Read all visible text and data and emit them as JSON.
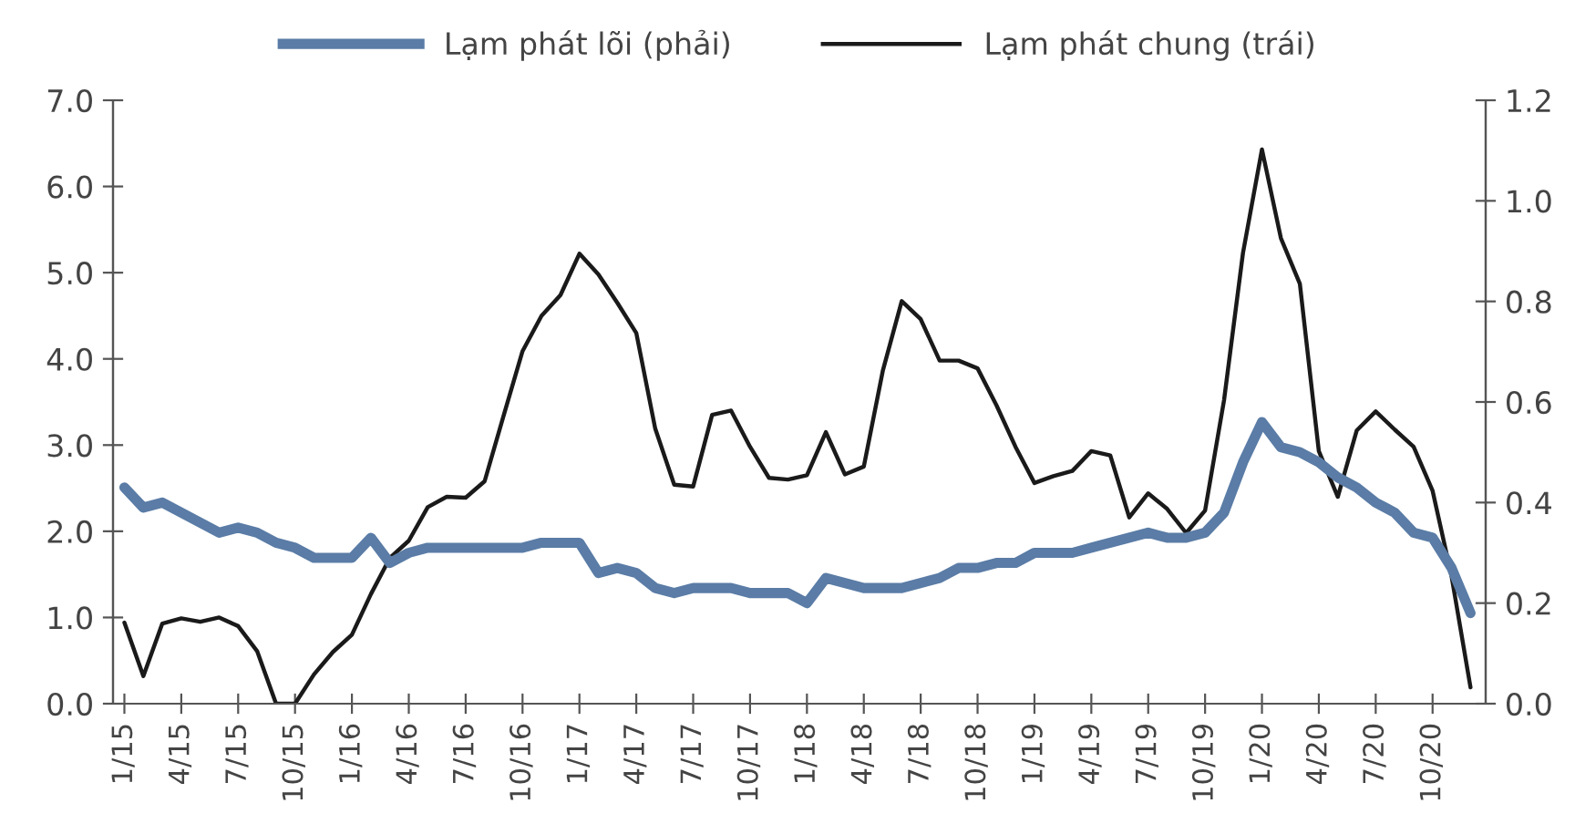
{
  "chart_data": {
    "type": "line",
    "categories": [
      "1/15",
      null,
      null,
      "4/15",
      null,
      null,
      "7/15",
      null,
      null,
      "10/15",
      null,
      null,
      "1/16",
      null,
      null,
      "4/16",
      null,
      null,
      "7/16",
      null,
      null,
      "10/16",
      null,
      null,
      "1/17",
      null,
      null,
      "4/17",
      null,
      null,
      "7/17",
      null,
      null,
      "10/17",
      null,
      null,
      "1/18",
      null,
      null,
      "4/18",
      null,
      null,
      "7/18",
      null,
      null,
      "10/18",
      null,
      null,
      "1/19",
      null,
      null,
      "4/19",
      null,
      null,
      "7/19",
      null,
      null,
      "10/19",
      null,
      null,
      "1/20",
      null,
      null,
      "4/20",
      null,
      null,
      "7/20",
      null,
      null,
      "10/20",
      null,
      null
    ],
    "series": [
      {
        "name": "Lạm phát lõi (phải)",
        "color": "#5a7ca6",
        "axis": "y2",
        "values": [
          0.43,
          0.39,
          0.4,
          0.38,
          0.36,
          0.34,
          0.35,
          0.34,
          0.32,
          0.31,
          0.29,
          0.29,
          0.29,
          0.33,
          0.28,
          0.3,
          0.31,
          0.31,
          0.31,
          0.31,
          0.31,
          0.31,
          0.32,
          0.32,
          0.32,
          0.26,
          0.27,
          0.26,
          0.23,
          0.22,
          0.23,
          0.23,
          0.23,
          0.22,
          0.22,
          0.22,
          0.2,
          0.25,
          0.24,
          0.23,
          0.23,
          0.23,
          0.24,
          0.25,
          0.27,
          0.27,
          0.28,
          0.28,
          0.3,
          0.3,
          0.3,
          0.31,
          0.32,
          0.33,
          0.34,
          0.33,
          0.33,
          0.34,
          0.38,
          0.48,
          0.56,
          0.51,
          0.5,
          0.48,
          0.45,
          0.43,
          0.4,
          0.38,
          0.34,
          0.33,
          0.27,
          0.18
        ]
      },
      {
        "name": "Lạm phát chung (trái)",
        "color": "#1a1a1a",
        "axis": "y",
        "values": [
          0.94,
          0.32,
          0.93,
          0.99,
          0.95,
          1.0,
          0.9,
          0.61,
          0.0,
          0.0,
          0.34,
          0.6,
          0.8,
          1.27,
          1.69,
          1.89,
          2.28,
          2.4,
          2.39,
          2.58,
          3.34,
          4.09,
          4.5,
          4.74,
          5.22,
          4.98,
          4.65,
          4.3,
          3.19,
          2.54,
          2.52,
          3.35,
          3.4,
          2.98,
          2.62,
          2.6,
          2.65,
          3.15,
          2.66,
          2.75,
          3.86,
          4.67,
          4.46,
          3.98,
          3.98,
          3.89,
          3.46,
          2.98,
          2.56,
          2.64,
          2.7,
          2.93,
          2.88,
          2.16,
          2.44,
          2.26,
          1.98,
          2.24,
          3.52,
          5.23,
          6.43,
          5.4,
          4.87,
          2.93,
          2.4,
          3.17,
          3.39,
          3.18,
          2.98,
          2.47,
          1.48,
          0.19
        ]
      }
    ],
    "ylim": [
      0,
      7
    ],
    "yticks": [
      {
        "value": 0,
        "label": "0.0"
      },
      {
        "value": 1,
        "label": "1.0"
      },
      {
        "value": 2,
        "label": "2.0"
      },
      {
        "value": 3,
        "label": "3.0"
      },
      {
        "value": 4,
        "label": "4.0"
      },
      {
        "value": 5,
        "label": "5.0"
      },
      {
        "value": 6,
        "label": "6.0"
      },
      {
        "value": 7,
        "label": "7.0"
      }
    ],
    "y2lim": [
      0,
      1.2
    ],
    "y2ticks": [
      {
        "value": 0,
        "label": "0.0"
      },
      {
        "value": 0.2,
        "label": "0.2"
      },
      {
        "value": 0.4,
        "label": "0.4"
      },
      {
        "value": 0.6,
        "label": "0.6"
      },
      {
        "value": 0.8,
        "label": "0.8"
      },
      {
        "value": 1.0,
        "label": "1.0"
      },
      {
        "value": 1.2,
        "label": "1.2"
      }
    ],
    "grid": false,
    "legend": "top",
    "marker": "none",
    "line_style": "solid"
  }
}
